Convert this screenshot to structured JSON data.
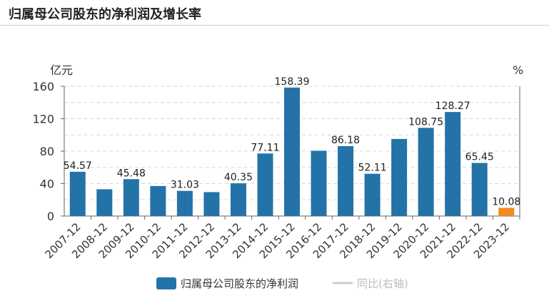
{
  "page": {
    "title": "归属母公司股东的净利润及增长率"
  },
  "colors": {
    "bar": "#2473a8",
    "highlight": "#f28b1f",
    "grid": "#d8d8d8",
    "axis": "#666666",
    "legend_off": "#cccccc"
  },
  "chart_data": {
    "type": "bar",
    "categories": [
      "2007-12",
      "2008-12",
      "2009-12",
      "2010-12",
      "2011-12",
      "2012-12",
      "2013-12",
      "2014-12",
      "2015-12",
      "2016-12",
      "2017-12",
      "2018-12",
      "2019-12",
      "2020-12",
      "2021-12",
      "2022-12",
      "2023-12"
    ],
    "series": [
      {
        "name": "归属母公司股东的净利润",
        "values": [
          54.57,
          33.0,
          45.48,
          37.0,
          31.03,
          29.5,
          40.35,
          77.11,
          158.39,
          80.5,
          86.18,
          52.11,
          95.0,
          108.75,
          128.27,
          65.45,
          10.08
        ]
      }
    ],
    "data_labels": [
      "54.57",
      "",
      "45.48",
      "",
      "31.03",
      "",
      "40.35",
      "77.11",
      "158.39",
      "",
      "86.18",
      "52.11",
      "",
      "108.75",
      "128.27",
      "65.45",
      "10.08"
    ],
    "highlight_index": 16,
    "yticks": [
      "0",
      "40",
      "80",
      "120",
      "160"
    ],
    "ylim": [
      0,
      160
    ],
    "ylabel_left": "亿元",
    "ylabel_right": "%",
    "legend": [
      {
        "label": "归属母公司股东的净利润",
        "active": true
      },
      {
        "label": "同比(右轴)",
        "active": false
      }
    ]
  }
}
